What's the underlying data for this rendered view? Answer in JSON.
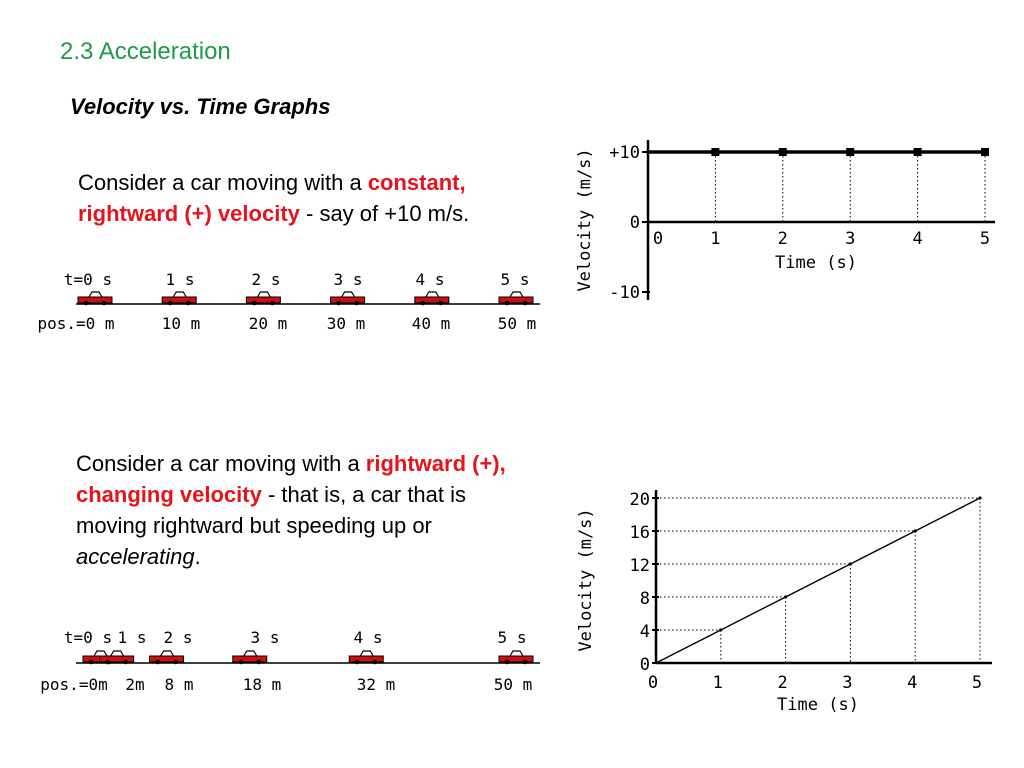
{
  "slide": {
    "title": "2.3 Acceleration",
    "subtitle": "Velocity vs. Time Graphs"
  },
  "paragraph1": {
    "prefix": "Consider a car moving with a ",
    "highlight": "constant, rightward (+) velocity",
    "suffix": " - say of +10 m/s."
  },
  "paragraph2": {
    "prefix": "Consider a car moving with a ",
    "highlight": "rightward (+), changing velocity",
    "suffix_a": " - that is, a car that is moving rightward but speeding up or ",
    "emph": "accelerating",
    "suffix_b": "."
  },
  "colors": {
    "title_green": "#1f9a4a",
    "highlight_red": "#e8121b",
    "car_red": "#cc1010"
  },
  "strip1": {
    "times": [
      "t=0 s",
      "1 s",
      "2 s",
      "3 s",
      "4 s",
      "5 s"
    ],
    "positions": [
      "pos.=0 m",
      "10 m",
      "20 m",
      "30 m",
      "40 m",
      "50 m"
    ],
    "pos_values": [
      0,
      10,
      20,
      30,
      40,
      50
    ]
  },
  "strip2": {
    "times": [
      "t=0 s",
      "1 s",
      "2 s",
      "3 s",
      "4 s",
      "5 s"
    ],
    "positions": [
      "pos.=0m",
      "2m",
      "8 m",
      "18 m",
      "32 m",
      "50 m"
    ],
    "pos_values": [
      0,
      2,
      8,
      18,
      32,
      50
    ]
  },
  "chart_data": [
    {
      "type": "line",
      "xlabel": "Time (s)",
      "ylabel": "Velocity (m/s)",
      "x": [
        0,
        1,
        2,
        3,
        4,
        5
      ],
      "y": [
        10,
        10,
        10,
        10,
        10,
        10
      ],
      "xticks": [
        "0",
        "1",
        "2",
        "3",
        "4",
        "5"
      ],
      "yticks": [
        "+10",
        "0",
        "-10"
      ],
      "ytick_values": [
        10,
        0,
        -10
      ],
      "xlim": [
        0,
        5
      ],
      "ylim": [
        -10,
        10
      ]
    },
    {
      "type": "line",
      "xlabel": "Time (s)",
      "ylabel": "Velocity (m/s)",
      "x": [
        0,
        1,
        2,
        3,
        4,
        5
      ],
      "y": [
        0,
        4,
        8,
        12,
        16,
        20
      ],
      "xticks": [
        "0",
        "1",
        "2",
        "3",
        "4",
        "5"
      ],
      "yticks": [
        "20",
        "16",
        "12",
        "8",
        "4",
        "0"
      ],
      "ytick_values": [
        20,
        16,
        12,
        8,
        4,
        0
      ],
      "xlim": [
        0,
        5
      ],
      "ylim": [
        0,
        20
      ]
    }
  ]
}
